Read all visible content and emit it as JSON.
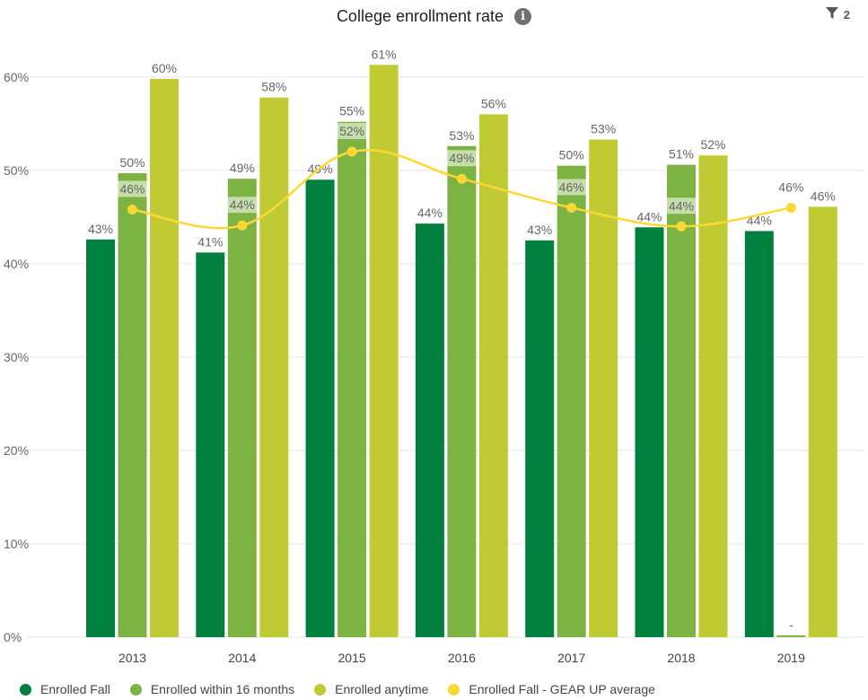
{
  "header": {
    "title": "College enrollment rate",
    "info_icon": "info-icon",
    "filter_icon": "filter-icon",
    "filter_count": "2"
  },
  "colors": {
    "enrolled_fall": "#00803f",
    "enrolled_16": "#7cb342",
    "enrolled_any": "#c0ca33",
    "gear_up": "#fdd835",
    "grid": "#e5e5e5",
    "label": "#666666"
  },
  "chart_data": {
    "type": "bar",
    "title": "College enrollment rate",
    "categories": [
      "2013",
      "2014",
      "2015",
      "2016",
      "2017",
      "2018",
      "2019"
    ],
    "ylim": [
      0,
      62
    ],
    "yticks": [
      0,
      10,
      20,
      30,
      40,
      50,
      60
    ],
    "ytick_labels": [
      "0%",
      "10%",
      "20%",
      "30%",
      "40%",
      "50%",
      "60%"
    ],
    "grid": true,
    "legend_position": "bottom-left",
    "series": [
      {
        "name": "Enrolled Fall",
        "type": "bar",
        "values": [
          42.6,
          41.2,
          49.0,
          44.3,
          42.5,
          43.9,
          43.5
        ],
        "labels": [
          "43%",
          "41%",
          "49%",
          "44%",
          "43%",
          "44%",
          "44%"
        ]
      },
      {
        "name": "Enrolled within 16 months",
        "type": "bar",
        "values": [
          49.7,
          49.1,
          55.2,
          52.6,
          50.5,
          50.6,
          0.2
        ],
        "labels": [
          "50%",
          "49%",
          "55%",
          "53%",
          "50%",
          "51%",
          "-"
        ]
      },
      {
        "name": "Enrolled anytime",
        "type": "bar",
        "values": [
          59.8,
          57.8,
          61.3,
          56.0,
          53.3,
          51.6,
          46.1
        ],
        "labels": [
          "60%",
          "58%",
          "61%",
          "56%",
          "53%",
          "52%",
          "46%"
        ]
      },
      {
        "name": "Enrolled Fall - GEAR UP average",
        "type": "line",
        "values": [
          45.8,
          44.1,
          52.0,
          49.1,
          46.0,
          44.0,
          46.0
        ],
        "labels": [
          "46%",
          "44%",
          "52%",
          "49%",
          "46%",
          "44%",
          "46%"
        ]
      }
    ]
  },
  "legend": [
    {
      "label": "Enrolled Fall",
      "color": "#00803f"
    },
    {
      "label": "Enrolled within 16 months",
      "color": "#7cb342"
    },
    {
      "label": "Enrolled anytime",
      "color": "#c0ca33"
    },
    {
      "label": "Enrolled Fall - GEAR UP average",
      "color": "#fdd835"
    }
  ]
}
